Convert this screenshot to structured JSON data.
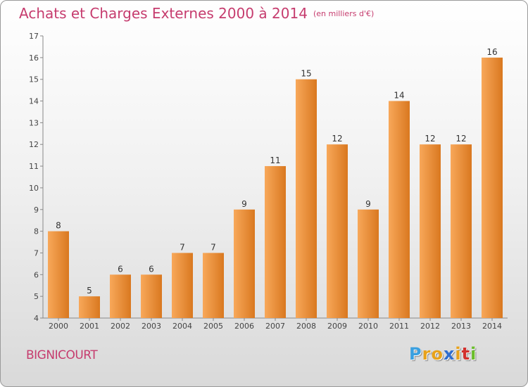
{
  "header": {
    "title": "Achats et Charges Externes 2000 à 2014",
    "unit": "(en milliers d'€)"
  },
  "footer": {
    "commune": "BIGNICOURT",
    "logo_letters": [
      "P",
      "r",
      "o",
      "x",
      "i",
      "t",
      "i"
    ],
    "logo_colors": [
      "#3aa0e0",
      "#e8a21a",
      "#e8a21a",
      "#2f6ed0",
      "#e8a21a",
      "#d2302d",
      "#6abd2a"
    ]
  },
  "colors": {
    "bar_light": "#f8a85a",
    "bar_dark": "#d9781f",
    "title": "#c63c6e"
  },
  "chart_data": {
    "type": "bar",
    "title": "Achats et Charges Externes 2000 à 2014",
    "subtitle": "(en milliers d'€)",
    "xlabel": "",
    "ylabel": "",
    "categories": [
      "2000",
      "2001",
      "2002",
      "2003",
      "2004",
      "2005",
      "2006",
      "2007",
      "2008",
      "2009",
      "2010",
      "2011",
      "2012",
      "2013",
      "2014"
    ],
    "values": [
      8,
      5,
      6,
      6,
      7,
      7,
      9,
      11,
      15,
      12,
      9,
      14,
      12,
      12,
      16
    ],
    "ylim": [
      4,
      17
    ],
    "yticks": [
      4,
      5,
      6,
      7,
      8,
      9,
      10,
      11,
      12,
      13,
      14,
      15,
      16,
      17
    ],
    "grid": false,
    "legend": "none"
  }
}
